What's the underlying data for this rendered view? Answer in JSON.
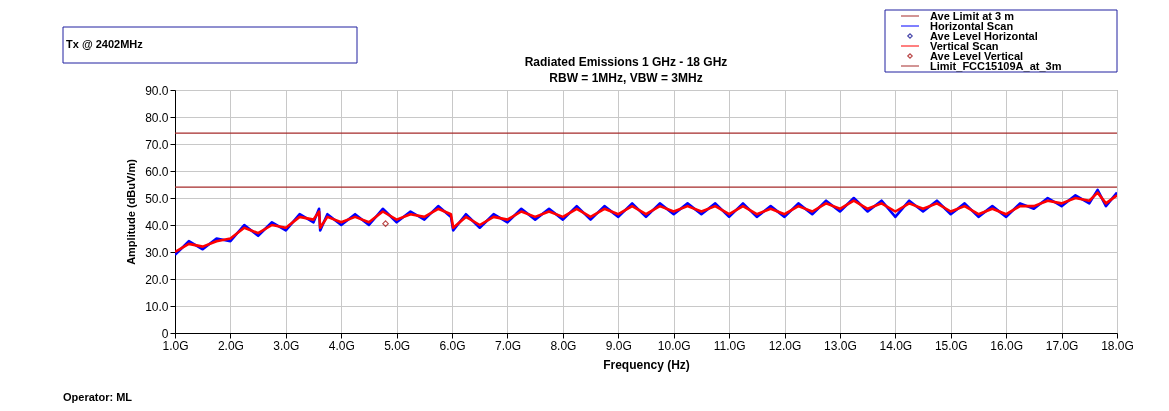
{
  "chart_data": {
    "type": "line",
    "title": "Radiated Emissions 1 GHz - 18 GHz",
    "subtitle": "RBW = 1MHz, VBW = 3MHz",
    "xlabel": "Frequency (Hz)",
    "ylabel": "Amplitude (dBuV/m)",
    "annotations": [
      "Tx @ 2402MHz",
      "Operator: ML"
    ],
    "xlim": [
      1,
      18
    ],
    "xticks": [
      {
        "value": 1,
        "label": "1.0G"
      },
      {
        "value": 2,
        "label": "2.0G"
      },
      {
        "value": 3,
        "label": "3.0G"
      },
      {
        "value": 4,
        "label": "4.0G"
      },
      {
        "value": 5,
        "label": "5.0G"
      },
      {
        "value": 6,
        "label": "6.0G"
      },
      {
        "value": 7,
        "label": "7.0G"
      },
      {
        "value": 8,
        "label": "8.0G"
      },
      {
        "value": 9,
        "label": "9.0G"
      },
      {
        "value": 10,
        "label": "10.0G"
      },
      {
        "value": 11,
        "label": "11.0G"
      },
      {
        "value": 12,
        "label": "12.0G"
      },
      {
        "value": 13,
        "label": "13.0G"
      },
      {
        "value": 14,
        "label": "14.0G"
      },
      {
        "value": 15,
        "label": "15.0G"
      },
      {
        "value": 16,
        "label": "16.0G"
      },
      {
        "value": 17,
        "label": "17.0G"
      },
      {
        "value": 18,
        "label": "18.0G"
      }
    ],
    "ylim": [
      0,
      90
    ],
    "yticks": [
      0,
      {
        "value": 10,
        "label": "10.0"
      },
      {
        "value": 20,
        "label": "20.0"
      },
      {
        "value": 30,
        "label": "30.0"
      },
      {
        "value": 40,
        "label": "40.0"
      },
      {
        "value": 50,
        "label": "50.0"
      },
      {
        "value": 60,
        "label": "60.0"
      },
      {
        "value": 70,
        "label": "70.0"
      },
      {
        "value": 80,
        "label": "80.0"
      },
      {
        "value": 90,
        "label": "90.0"
      }
    ],
    "grid": true,
    "legend": "top right",
    "series": [
      {
        "name": "Ave Limit at 3 m",
        "type": "line",
        "color": "#a52a2a",
        "x": [
          1,
          18
        ],
        "values": [
          54,
          54
        ]
      },
      {
        "name": "Horizontal Scan",
        "type": "line",
        "color": "#0000ff",
        "x": [
          1,
          1.25,
          1.5,
          1.75,
          2,
          2.25,
          2.5,
          2.75,
          3,
          3.25,
          3.5,
          3.6,
          3.62,
          3.75,
          4,
          4.25,
          4.5,
          4.75,
          5,
          5.25,
          5.5,
          5.75,
          5.98,
          6.02,
          6.25,
          6.5,
          6.75,
          7,
          7.25,
          7.5,
          7.75,
          8,
          8.25,
          8.5,
          8.75,
          9,
          9.25,
          9.5,
          9.75,
          10,
          10.25,
          10.5,
          10.75,
          11,
          11.25,
          11.5,
          11.75,
          12,
          12.25,
          12.5,
          12.75,
          13,
          13.25,
          13.5,
          13.75,
          14,
          14.25,
          14.5,
          14.75,
          15,
          15.25,
          15.5,
          15.75,
          16,
          16.25,
          16.5,
          16.75,
          17,
          17.25,
          17.5,
          17.65,
          17.8,
          18
        ],
        "values": [
          29,
          34,
          31,
          35,
          34,
          40,
          36,
          41,
          38,
          44,
          41,
          46,
          38,
          44,
          40,
          44,
          40,
          46,
          41,
          45,
          42,
          47,
          43,
          38,
          44,
          39,
          44,
          41,
          46,
          42,
          46,
          42,
          47,
          42,
          47,
          43,
          48,
          43,
          48,
          44,
          48,
          44,
          48,
          43,
          48,
          43,
          47,
          43,
          48,
          44,
          49,
          45,
          50,
          45,
          49,
          43,
          49,
          45,
          49,
          44,
          48,
          43,
          47,
          43,
          48,
          46,
          50,
          47,
          51,
          48,
          53,
          47,
          52
        ]
      },
      {
        "name": "Ave Level Horizontal",
        "type": "scatter",
        "marker": "diamond",
        "color": "#00008b"
      },
      {
        "name": "Vertical Scan",
        "type": "line",
        "color": "#ff0000",
        "x": [
          1,
          1.25,
          1.5,
          1.75,
          2,
          2.25,
          2.5,
          2.75,
          3,
          3.25,
          3.5,
          3.6,
          3.62,
          3.75,
          4,
          4.25,
          4.5,
          4.75,
          5,
          5.25,
          5.5,
          5.75,
          5.98,
          6.02,
          6.25,
          6.5,
          6.75,
          7,
          7.25,
          7.5,
          7.75,
          8,
          8.25,
          8.5,
          8.75,
          9,
          9.25,
          9.5,
          9.75,
          10,
          10.25,
          10.5,
          10.75,
          11,
          11.25,
          11.5,
          11.75,
          12,
          12.25,
          12.5,
          12.75,
          13,
          13.25,
          13.5,
          13.75,
          14,
          14.25,
          14.5,
          14.75,
          15,
          15.25,
          15.5,
          15.75,
          16,
          16.25,
          16.5,
          16.75,
          17,
          17.25,
          17.5,
          17.65,
          17.8,
          18
        ],
        "values": [
          30,
          33,
          32,
          34,
          35,
          39,
          37,
          40,
          39,
          43,
          42,
          45,
          39,
          43,
          41,
          43,
          41,
          45,
          42,
          44,
          43,
          46,
          44,
          39,
          43,
          40,
          43,
          42,
          45,
          43,
          45,
          43,
          46,
          43,
          46,
          44,
          47,
          44,
          47,
          45,
          47,
          45,
          47,
          44,
          47,
          44,
          46,
          44,
          47,
          45,
          48,
          46,
          49,
          46,
          48,
          45,
          48,
          46,
          48,
          45,
          47,
          44,
          46,
          44,
          47,
          47,
          49,
          48,
          50,
          49,
          52,
          48,
          51
        ]
      },
      {
        "name": "Ave Level Vertical",
        "type": "scatter",
        "marker": "diamond",
        "color": "#a00000",
        "x": [
          4.8
        ],
        "values": [
          40.5
        ]
      },
      {
        "name": "Limit_FCC15109A_at_3m",
        "type": "line",
        "color": "#a52a2a",
        "x": [
          1,
          18
        ],
        "values": [
          74,
          74
        ]
      }
    ]
  }
}
